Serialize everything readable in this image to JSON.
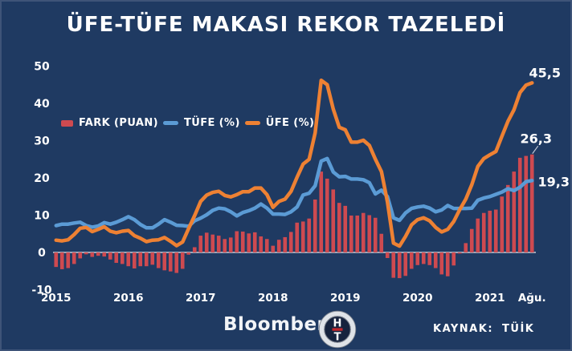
{
  "title": "ÜFE-TÜFE MAKASI REKOR TAZELEDİ",
  "legend": {
    "items": [
      {
        "label": "FARK (PUAN)",
        "type": "bar",
        "color": "#ce4a50"
      },
      {
        "label": "TÜFE (%)",
        "type": "line",
        "color": "#5b9bd5"
      },
      {
        "label": "ÜFE (%)",
        "type": "line",
        "color": "#ee8133"
      }
    ]
  },
  "footer": {
    "brand": "Bloomberg",
    "logo": {
      "name": "bloomberg-ht-logo",
      "top_letter": "H",
      "bottom_letter": "T"
    },
    "source_label": "KAYNAK: TÜİK"
  },
  "colors": {
    "background": "#1f3a62",
    "border": "#3e5478",
    "text": "#ffffff",
    "zero_line": "#c6ccd8",
    "fark_bar": "#ce4a50",
    "tufe_line": "#5b9bd5",
    "ufe_line": "#ee8133",
    "logo_red": "#c2272d"
  },
  "chart_data": {
    "type": "combo",
    "title": "ÜFE-TÜFE MAKASI REKOR TAZELEDİ",
    "x_start": "2015-01",
    "x_freq": "monthly",
    "x_ticks": [
      {
        "label": "2015",
        "month": 0
      },
      {
        "label": "2016",
        "month": 12
      },
      {
        "label": "2017",
        "month": 24
      },
      {
        "label": "2018",
        "month": 36
      },
      {
        "label": "2019",
        "month": 48
      },
      {
        "label": "2020",
        "month": 60
      },
      {
        "label": "2021",
        "month": 72
      },
      {
        "label": "Ağu.",
        "month": 79
      }
    ],
    "ylim": [
      -10,
      50
    ],
    "yticks": [
      50,
      40,
      30,
      20,
      10,
      0,
      -10
    ],
    "grid": "zero-line-only",
    "legend_position": "top-left-inside",
    "series": [
      {
        "name": "FARK (PUAN)",
        "type": "bar",
        "color": "#ce4a50",
        "values": [
          -3.9,
          -4.5,
          -4.2,
          -3.1,
          -1.6,
          -0.5,
          -1.2,
          -0.9,
          -1.1,
          -1.9,
          -2.8,
          -3.1,
          -3.7,
          -4.3,
          -3.7,
          -3.7,
          -3.3,
          -4.2,
          -4.8,
          -5.1,
          -5.5,
          -4.4,
          -0.6,
          1.4,
          4.5,
          5.3,
          4.8,
          4.5,
          3.6,
          4.0,
          5.7,
          5.6,
          5.1,
          5.4,
          4.3,
          3.6,
          1.8,
          3.4,
          4.1,
          5.5,
          8.0,
          8.3,
          9.1,
          14.2,
          21.7,
          19.8,
          16.9,
          13.3,
          12.5,
          9.9,
          9.9,
          10.6,
          10.0,
          9.3,
          5.0,
          -1.5,
          -6.8,
          -6.9,
          -6.3,
          -4.4,
          -3.4,
          -3.1,
          -3.4,
          -4.2,
          -5.9,
          -6.4,
          -3.5,
          -0.3,
          2.5,
          6.3,
          9.1,
          10.6,
          11.2,
          11.5,
          15.0,
          18.1,
          21.7,
          25.4,
          25.9,
          26.3
        ]
      },
      {
        "name": "TÜFE (%)",
        "type": "line",
        "color": "#5b9bd5",
        "values": [
          7.2,
          7.6,
          7.6,
          7.9,
          8.1,
          7.2,
          6.8,
          7.1,
          8.0,
          7.6,
          8.1,
          8.8,
          9.6,
          8.8,
          7.5,
          6.6,
          6.6,
          7.6,
          8.8,
          8.1,
          7.3,
          7.2,
          7.0,
          8.5,
          9.2,
          10.1,
          11.3,
          11.9,
          11.7,
          10.9,
          9.8,
          10.7,
          11.2,
          11.9,
          13.0,
          11.9,
          10.3,
          10.3,
          10.2,
          10.9,
          12.2,
          15.4,
          15.9,
          17.9,
          24.5,
          25.2,
          21.6,
          20.3,
          20.4,
          19.7,
          19.7,
          19.5,
          18.7,
          15.7,
          16.7,
          15.0,
          9.3,
          8.6,
          10.6,
          11.8,
          12.2,
          12.4,
          11.9,
          10.9,
          11.4,
          12.6,
          11.8,
          11.8,
          11.8,
          11.9,
          14.0,
          14.6,
          15.0,
          15.6,
          16.2,
          17.1,
          16.6,
          17.5,
          19.0,
          19.3
        ]
      },
      {
        "name": "ÜFE (%)",
        "type": "line",
        "color": "#ee8133",
        "values": [
          3.3,
          3.1,
          3.4,
          4.8,
          6.5,
          6.7,
          5.6,
          6.2,
          6.9,
          5.7,
          5.3,
          5.7,
          5.9,
          4.5,
          3.8,
          2.9,
          3.3,
          3.4,
          4.0,
          3.0,
          1.8,
          2.8,
          6.4,
          9.9,
          13.7,
          15.4,
          16.1,
          16.4,
          15.3,
          14.9,
          15.5,
          16.3,
          16.3,
          17.3,
          17.3,
          15.5,
          12.1,
          13.7,
          14.3,
          16.4,
          20.2,
          23.7,
          25.0,
          32.1,
          46.2,
          45.0,
          38.5,
          33.6,
          32.9,
          29.6,
          29.6,
          30.1,
          28.7,
          25.0,
          21.7,
          13.5,
          2.5,
          1.7,
          4.3,
          7.4,
          8.8,
          9.3,
          8.5,
          6.7,
          5.5,
          6.2,
          8.3,
          11.5,
          14.3,
          18.2,
          23.1,
          25.2,
          26.2,
          27.1,
          31.2,
          35.2,
          38.3,
          42.9,
          44.9,
          45.5
        ]
      }
    ],
    "end_labels": [
      {
        "series": "ÜFE (%)",
        "text": "45,5"
      },
      {
        "series": "FARK (PUAN)",
        "text": "26,3"
      },
      {
        "series": "TÜFE (%)",
        "text": "19,3"
      }
    ]
  }
}
